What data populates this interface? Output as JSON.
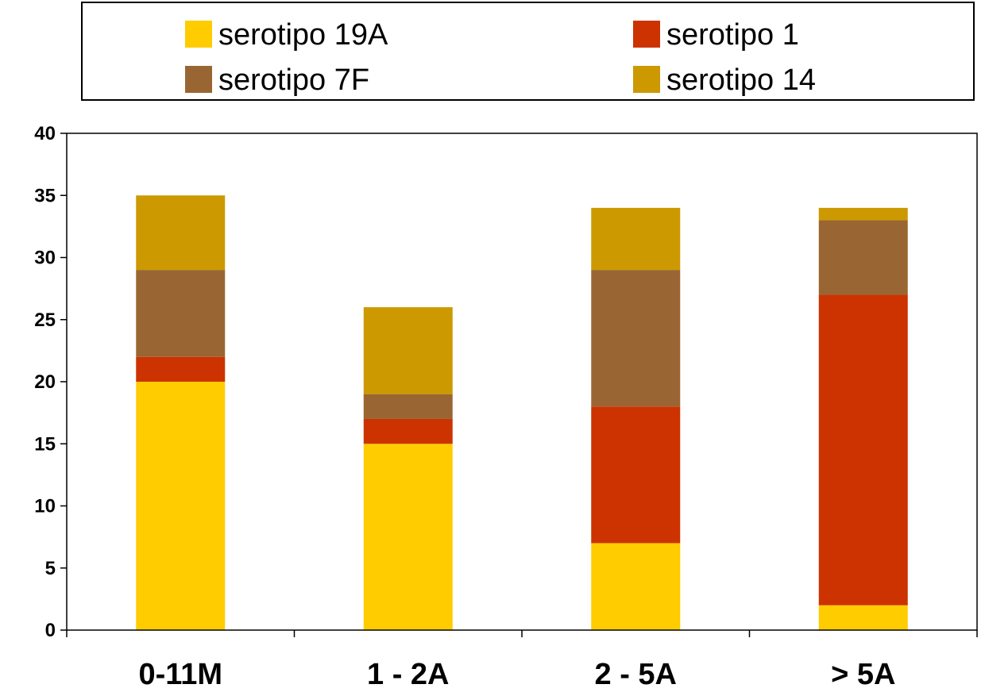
{
  "chart_data": {
    "type": "bar",
    "stacked": true,
    "categories": [
      "0-11M",
      "1 - 2A",
      "2 - 5A",
      "> 5A"
    ],
    "series": [
      {
        "name": "serotipo 19A",
        "color": "#FFCC00",
        "values": [
          20,
          15,
          7,
          2
        ]
      },
      {
        "name": "serotipo 1",
        "color": "#CC3300",
        "values": [
          2,
          2,
          11,
          25
        ]
      },
      {
        "name": "serotipo 7F",
        "color": "#996633",
        "values": [
          7,
          2,
          11,
          6
        ]
      },
      {
        "name": "serotipo 14",
        "color": "#CC9900",
        "values": [
          6,
          7,
          5,
          1
        ]
      }
    ],
    "ylim": [
      0,
      40
    ],
    "yticks": [
      0,
      5,
      10,
      15,
      20,
      25,
      30,
      35,
      40
    ],
    "grid": false,
    "legend_position": "top",
    "title": "",
    "xlabel": "",
    "ylabel": ""
  }
}
